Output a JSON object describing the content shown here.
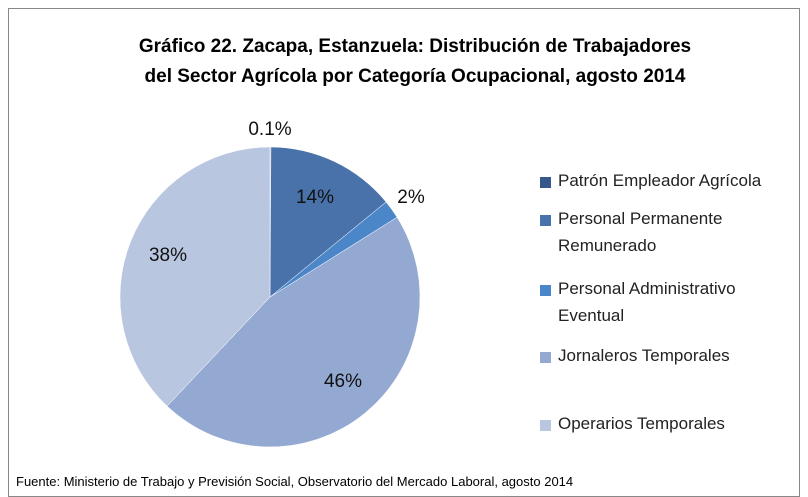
{
  "chart_data": {
    "type": "pie",
    "title": [
      "Gráfico 22. Zacapa, Estanzuela: Distribución de Trabajadores",
      "del Sector Agrícola por Categoría Ocupacional, agosto 2014"
    ],
    "categories": [
      "Patrón Empleador Agrícola",
      "Personal Permanente Remunerado",
      "Personal Administrativo Eventual",
      "Jornaleros Temporales",
      "Operarios Temporales"
    ],
    "values": [
      0.1,
      14,
      2,
      46,
      38
    ],
    "value_labels": [
      "0.1%",
      "14%",
      "2%",
      "46%",
      "38%"
    ],
    "colors": [
      "#34598a",
      "#4a72aa",
      "#4a86c8",
      "#94a9d2",
      "#b9c6e0"
    ],
    "legend": "right",
    "source": "Fuente: Ministerio de Trabajo y Previsión Social, Observatorio del Mercado Laboral, agosto 2014"
  }
}
